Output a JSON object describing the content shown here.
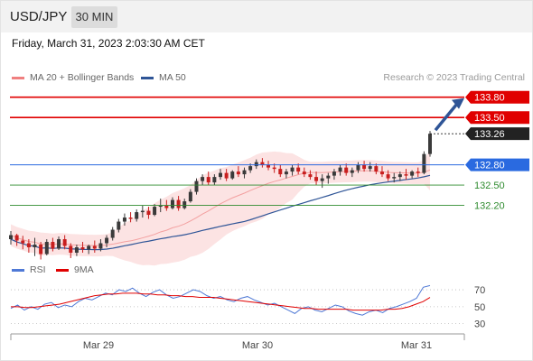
{
  "header": {
    "pair": "USD/JPY",
    "timeframe": "30 MIN"
  },
  "datetime": "Friday, March 31, 2023 2:03:30 AM CET",
  "credit": "Research © 2023 Trading Central",
  "legend": [
    {
      "label": "MA 20 + Bollinger Bands",
      "color": "#f08080"
    },
    {
      "label": "MA 50",
      "color": "#2f5597"
    }
  ],
  "rsi_legend": [
    {
      "label": "RSI",
      "color": "#4f79d6"
    },
    {
      "label": "9MA",
      "color": "#e00000"
    }
  ],
  "chart_data": {
    "type": "line",
    "price_panel": {
      "y_visible": [
        131.5,
        133.93
      ],
      "candles": [
        [
          131.7,
          131.82,
          131.62,
          131.76
        ],
        [
          131.76,
          131.78,
          131.6,
          131.68
        ],
        [
          131.68,
          131.75,
          131.55,
          131.64
        ],
        [
          131.64,
          131.7,
          131.5,
          131.58
        ],
        [
          131.58,
          131.72,
          131.45,
          131.62
        ],
        [
          131.62,
          131.66,
          131.4,
          131.48
        ],
        [
          131.48,
          131.7,
          131.46,
          131.66
        ],
        [
          131.66,
          131.72,
          131.52,
          131.56
        ],
        [
          131.56,
          131.74,
          131.54,
          131.7
        ],
        [
          131.7,
          131.76,
          131.55,
          131.6
        ],
        [
          131.6,
          131.64,
          131.42,
          131.5
        ],
        [
          131.5,
          131.62,
          131.45,
          131.58
        ],
        [
          131.58,
          131.66,
          131.5,
          131.55
        ],
        [
          131.55,
          131.62,
          131.48,
          131.6
        ],
        [
          131.6,
          131.68,
          131.5,
          131.56
        ],
        [
          131.56,
          131.7,
          131.52,
          131.64
        ],
        [
          131.64,
          131.76,
          131.58,
          131.72
        ],
        [
          131.72,
          131.88,
          131.68,
          131.84
        ],
        [
          131.84,
          132.0,
          131.8,
          131.96
        ],
        [
          131.96,
          132.08,
          131.9,
          132.02
        ],
        [
          132.02,
          132.1,
          131.95,
          132.0
        ],
        [
          132.0,
          132.14,
          131.96,
          132.1
        ],
        [
          132.1,
          132.2,
          132.02,
          132.12
        ],
        [
          132.12,
          132.18,
          132.0,
          132.06
        ],
        [
          132.06,
          132.22,
          132.04,
          132.18
        ],
        [
          132.18,
          132.3,
          132.1,
          132.2
        ],
        [
          132.2,
          132.28,
          132.12,
          132.16
        ],
        [
          132.16,
          132.32,
          132.14,
          132.28
        ],
        [
          132.28,
          132.34,
          132.12,
          132.16
        ],
        [
          132.16,
          132.3,
          132.14,
          132.26
        ],
        [
          132.26,
          132.44,
          132.24,
          132.4
        ],
        [
          132.4,
          132.6,
          132.36,
          132.56
        ],
        [
          132.56,
          132.66,
          132.5,
          132.62
        ],
        [
          132.62,
          132.7,
          132.5,
          132.54
        ],
        [
          132.54,
          132.66,
          132.5,
          132.62
        ],
        [
          132.62,
          132.74,
          132.58,
          132.68
        ],
        [
          132.68,
          132.74,
          132.56,
          132.6
        ],
        [
          132.6,
          132.72,
          132.58,
          132.7
        ],
        [
          132.7,
          132.78,
          132.62,
          132.66
        ],
        [
          132.66,
          132.76,
          132.6,
          132.72
        ],
        [
          132.72,
          132.82,
          132.68,
          132.78
        ],
        [
          132.78,
          132.88,
          132.74,
          132.84
        ],
        [
          132.84,
          132.9,
          132.76,
          132.8
        ],
        [
          132.8,
          132.86,
          132.72,
          132.76
        ],
        [
          132.76,
          132.82,
          132.68,
          132.74
        ],
        [
          132.74,
          132.8,
          132.62,
          132.66
        ],
        [
          132.66,
          132.74,
          132.6,
          132.7
        ],
        [
          132.7,
          132.8,
          132.64,
          132.76
        ],
        [
          132.76,
          132.82,
          132.66,
          132.7
        ],
        [
          132.7,
          132.76,
          132.62,
          132.66
        ],
        [
          132.66,
          132.72,
          132.58,
          132.62
        ],
        [
          132.62,
          132.7,
          132.5,
          132.56
        ],
        [
          132.56,
          132.66,
          132.46,
          132.6
        ],
        [
          132.6,
          132.68,
          132.52,
          132.64
        ],
        [
          132.64,
          132.74,
          132.58,
          132.7
        ],
        [
          132.7,
          132.8,
          132.64,
          132.76
        ],
        [
          132.76,
          132.82,
          132.64,
          132.68
        ],
        [
          132.68,
          132.76,
          132.62,
          132.72
        ],
        [
          132.72,
          132.84,
          132.68,
          132.8
        ],
        [
          132.8,
          132.86,
          132.7,
          132.74
        ],
        [
          132.74,
          132.84,
          132.7,
          132.78
        ],
        [
          132.78,
          132.82,
          132.66,
          132.7
        ],
        [
          132.7,
          132.78,
          132.62,
          132.66
        ],
        [
          132.66,
          132.72,
          132.56,
          132.6
        ],
        [
          132.6,
          132.68,
          132.54,
          132.62
        ],
        [
          132.62,
          132.7,
          132.56,
          132.66
        ],
        [
          132.66,
          132.74,
          132.58,
          132.64
        ],
        [
          132.64,
          132.72,
          132.6,
          132.7
        ],
        [
          132.7,
          132.76,
          132.62,
          132.68
        ],
        [
          132.68,
          133.0,
          132.66,
          132.96
        ],
        [
          132.96,
          133.3,
          132.92,
          133.26
        ]
      ],
      "levels": [
        {
          "value": 133.8,
          "label": "133.80",
          "color": "#e00000",
          "style": "solid"
        },
        {
          "value": 133.5,
          "label": "133.50",
          "color": "#e00000",
          "style": "solid"
        },
        {
          "value": 133.26,
          "label": "133.26",
          "color": "#222222",
          "style": "dotted"
        },
        {
          "value": 132.8,
          "label": "132.80",
          "color": "#2a6ae0",
          "style": "solid"
        },
        {
          "value": 132.5,
          "label": "132.50",
          "color": "#2e8b2e",
          "style": "solid"
        },
        {
          "value": 132.2,
          "label": "132.20",
          "color": "#2e8b2e",
          "style": "solid"
        }
      ]
    },
    "rsi_panel": {
      "ylim": [
        20,
        85
      ],
      "ticks": [
        70,
        50,
        30
      ],
      "rsi": [
        48,
        52,
        46,
        50,
        47,
        53,
        55,
        49,
        52,
        50,
        56,
        60,
        58,
        62,
        66,
        64,
        70,
        68,
        72,
        66,
        62,
        67,
        70,
        64,
        60,
        62,
        66,
        70,
        68,
        63,
        60,
        62,
        58,
        56,
        60,
        62,
        58,
        55,
        52,
        54,
        50,
        46,
        42,
        48,
        50,
        46,
        44,
        48,
        52,
        50,
        45,
        42,
        40,
        44,
        46,
        43,
        48,
        50,
        53,
        56,
        60,
        73,
        75
      ],
      "ma9": [
        50,
        50,
        49,
        49,
        50,
        51,
        52,
        53,
        55,
        57,
        59,
        61,
        63,
        64,
        65,
        65,
        66,
        66,
        66,
        65,
        65,
        64,
        64,
        63,
        63,
        62,
        62,
        61,
        61,
        61,
        60,
        59,
        58,
        57,
        56,
        55,
        54,
        53,
        52,
        51,
        50,
        49,
        48,
        48,
        47,
        47,
        47,
        47,
        47,
        46,
        46,
        46,
        46,
        46,
        47,
        47,
        48,
        50,
        53,
        56,
        61
      ]
    },
    "x_tick_labels": [
      "Mar 29",
      "Mar 30",
      "Mar 31"
    ],
    "y_tick_labels": [
      "70",
      "50",
      "30"
    ]
  }
}
